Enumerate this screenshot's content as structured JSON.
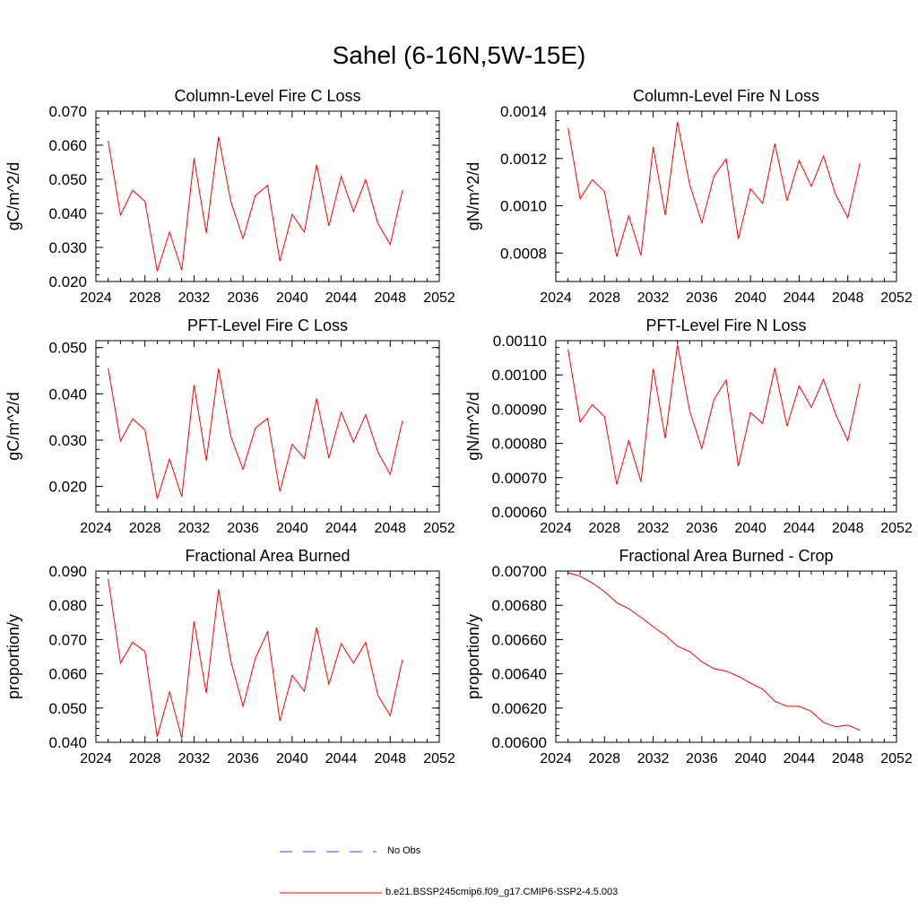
{
  "title": "Sahel (6-16N,5W-15E)",
  "colors": {
    "model": "#ff0000",
    "obs": "#4040ff",
    "axis": "#000000"
  },
  "legend": {
    "obs_label": "No Obs",
    "model_label": "b.e21.BSSP245cmip6.f09_g17.CMIP6-SSP2-4.5.003"
  },
  "chart_data": [
    {
      "type": "line",
      "title": "Column-Level Fire C Loss",
      "xlabel": "",
      "ylabel": "gC/m^2/d",
      "xlim": [
        2024,
        2052
      ],
      "ylim": [
        0.02,
        0.07
      ],
      "xticks": [
        "2024",
        "2028",
        "2032",
        "2036",
        "2040",
        "2044",
        "2048",
        "2052"
      ],
      "yticks": [
        "0.020",
        "0.030",
        "0.040",
        "0.050",
        "0.060",
        "0.070"
      ],
      "ytick_values": [
        0.02,
        0.03,
        0.04,
        0.05,
        0.06,
        0.07
      ],
      "series": [
        {
          "name": "b.e21.BSSP245cmip6.f09_g17.CMIP6-SSP2-4.5.003",
          "x": [
            2025,
            2026,
            2027,
            2028,
            2029,
            2030,
            2031,
            2032,
            2033,
            2034,
            2035,
            2036,
            2037,
            2038,
            2039,
            2040,
            2041,
            2042,
            2043,
            2044,
            2045,
            2046,
            2047,
            2048,
            2049
          ],
          "values": [
            0.0613,
            0.0395,
            0.0468,
            0.0435,
            0.023,
            0.0345,
            0.0233,
            0.0562,
            0.0342,
            0.0625,
            0.0435,
            0.0326,
            0.0452,
            0.0482,
            0.026,
            0.0397,
            0.0345,
            0.0543,
            0.0363,
            0.0508,
            0.0405,
            0.0499,
            0.037,
            0.0309,
            0.0468
          ]
        }
      ]
    },
    {
      "type": "line",
      "title": "Column-Level Fire N Loss",
      "xlabel": "",
      "ylabel": "gN/m^2/d",
      "xlim": [
        2024,
        2052
      ],
      "ylim": [
        0.00068,
        0.0014
      ],
      "xticks": [
        "2024",
        "2028",
        "2032",
        "2036",
        "2040",
        "2044",
        "2048",
        "2052"
      ],
      "yticks": [
        "0.0008",
        "0.0010",
        "0.0012",
        "0.0014"
      ],
      "ytick_values": [
        0.0008,
        0.001,
        0.0012,
        0.0014
      ],
      "series": [
        {
          "name": "b.e21.BSSP245cmip6.f09_g17.CMIP6-SSP2-4.5.003",
          "x": [
            2025,
            2026,
            2027,
            2028,
            2029,
            2030,
            2031,
            2032,
            2033,
            2034,
            2035,
            2036,
            2037,
            2038,
            2039,
            2040,
            2041,
            2042,
            2043,
            2044,
            2045,
            2046,
            2047,
            2048,
            2049
          ],
          "values": [
            0.00133,
            0.00103,
            0.00111,
            0.00106,
            0.000785,
            0.000958,
            0.00079,
            0.001248,
            0.00096,
            0.001355,
            0.00109,
            0.000928,
            0.001125,
            0.001198,
            0.00086,
            0.001072,
            0.00101,
            0.001262,
            0.001022,
            0.001192,
            0.001082,
            0.00121,
            0.001048,
            0.00095,
            0.00118
          ]
        }
      ]
    },
    {
      "type": "line",
      "title": "PFT-Level Fire C Loss",
      "xlabel": "",
      "ylabel": "gC/m^2/d",
      "xlim": [
        2024,
        2052
      ],
      "ylim": [
        0.0145,
        0.0515
      ],
      "xticks": [
        "2024",
        "2028",
        "2032",
        "2036",
        "2040",
        "2044",
        "2048",
        "2052"
      ],
      "yticks": [
        "0.020",
        "0.030",
        "0.040",
        "0.050"
      ],
      "ytick_values": [
        0.02,
        0.03,
        0.04,
        0.05
      ],
      "series": [
        {
          "name": "b.e21.BSSP245cmip6.f09_g17.CMIP6-SSP2-4.5.003",
          "x": [
            2025,
            2026,
            2027,
            2028,
            2029,
            2030,
            2031,
            2032,
            2033,
            2034,
            2035,
            2036,
            2037,
            2038,
            2039,
            2040,
            2041,
            2042,
            2043,
            2044,
            2045,
            2046,
            2047,
            2048,
            2049
          ],
          "values": [
            0.0455,
            0.0298,
            0.0346,
            0.0322,
            0.0173,
            0.0259,
            0.0178,
            0.0419,
            0.0256,
            0.0455,
            0.0308,
            0.0237,
            0.0326,
            0.0347,
            0.0189,
            0.0291,
            0.026,
            0.039,
            0.0261,
            0.036,
            0.0296,
            0.0355,
            0.0274,
            0.0226,
            0.0342
          ]
        }
      ]
    },
    {
      "type": "line",
      "title": "PFT-Level Fire N Loss",
      "xlabel": "",
      "ylabel": "gN/m^2/d",
      "xlim": [
        2024,
        2052
      ],
      "ylim": [
        0.0006,
        0.0011
      ],
      "xticks": [
        "2024",
        "2028",
        "2032",
        "2036",
        "2040",
        "2044",
        "2048",
        "2052"
      ],
      "yticks": [
        "0.00060",
        "0.00070",
        "0.00080",
        "0.00090",
        "0.00100",
        "0.00110"
      ],
      "ytick_values": [
        0.0006,
        0.0007,
        0.0008,
        0.0009,
        0.001,
        0.0011
      ],
      "series": [
        {
          "name": "b.e21.BSSP245cmip6.f09_g17.CMIP6-SSP2-4.5.003",
          "x": [
            2025,
            2026,
            2027,
            2028,
            2029,
            2030,
            2031,
            2032,
            2033,
            2034,
            2035,
            2036,
            2037,
            2038,
            2039,
            2040,
            2041,
            2042,
            2043,
            2044,
            2045,
            2046,
            2047,
            2048,
            2049
          ],
          "values": [
            0.001075,
            0.000862,
            0.000913,
            0.000878,
            0.00068,
            0.000808,
            0.000688,
            0.001018,
            0.000815,
            0.001088,
            0.000895,
            0.000785,
            0.000928,
            0.000985,
            0.000733,
            0.00089,
            0.000858,
            0.00102,
            0.00085,
            0.000968,
            0.000905,
            0.000987,
            0.000885,
            0.000808,
            0.000975
          ]
        }
      ]
    },
    {
      "type": "line",
      "title": "Fractional Area Burned",
      "xlabel": "",
      "ylabel": "proportion/y",
      "xlim": [
        2024,
        2052
      ],
      "ylim": [
        0.04,
        0.09
      ],
      "xticks": [
        "2024",
        "2028",
        "2032",
        "2036",
        "2040",
        "2044",
        "2048",
        "2052"
      ],
      "yticks": [
        "0.040",
        "0.050",
        "0.060",
        "0.070",
        "0.080",
        "0.090"
      ],
      "ytick_values": [
        0.04,
        0.05,
        0.06,
        0.07,
        0.08,
        0.09
      ],
      "series": [
        {
          "name": "b.e21.BSSP245cmip6.f09_g17.CMIP6-SSP2-4.5.003",
          "x": [
            2025,
            2026,
            2027,
            2028,
            2029,
            2030,
            2031,
            2032,
            2033,
            2034,
            2035,
            2036,
            2037,
            2038,
            2039,
            2040,
            2041,
            2042,
            2043,
            2044,
            2045,
            2046,
            2047,
            2048,
            2049
          ],
          "values": [
            0.0877,
            0.0632,
            0.0692,
            0.0665,
            0.0416,
            0.0547,
            0.0412,
            0.0753,
            0.0544,
            0.0847,
            0.0637,
            0.0505,
            0.0645,
            0.0723,
            0.0462,
            0.0595,
            0.0549,
            0.0735,
            0.057,
            0.0688,
            0.0631,
            0.0692,
            0.0537,
            0.0478,
            0.0642
          ]
        }
      ]
    },
    {
      "type": "line",
      "title": "Fractional Area Burned - Crop",
      "xlabel": "",
      "ylabel": "proportion/y",
      "xlim": [
        2024,
        2052
      ],
      "ylim": [
        0.006,
        0.007
      ],
      "xticks": [
        "2024",
        "2028",
        "2032",
        "2036",
        "2040",
        "2044",
        "2048",
        "2052"
      ],
      "yticks": [
        "0.00600",
        "0.00620",
        "0.00640",
        "0.00660",
        "0.00680",
        "0.00700"
      ],
      "ytick_values": [
        0.006,
        0.0062,
        0.0064,
        0.0066,
        0.0068,
        0.007
      ],
      "series": [
        {
          "name": "b.e21.BSSP245cmip6.f09_g17.CMIP6-SSP2-4.5.003",
          "x": [
            2025,
            2026,
            2027,
            2028,
            2029,
            2030,
            2031,
            2032,
            2033,
            2034,
            2035,
            2036,
            2037,
            2038,
            2039,
            2040,
            2041,
            2042,
            2043,
            2044,
            2045,
            2046,
            2047,
            2048,
            2049
          ],
          "values": [
            0.00699,
            0.00697,
            0.00693,
            0.00688,
            0.006815,
            0.00678,
            0.00673,
            0.006675,
            0.006625,
            0.00656,
            0.00653,
            0.00647,
            0.00643,
            0.006415,
            0.006385,
            0.006345,
            0.00631,
            0.00624,
            0.00621,
            0.00621,
            0.00618,
            0.006115,
            0.00609,
            0.0061,
            0.00607
          ]
        }
      ]
    }
  ]
}
